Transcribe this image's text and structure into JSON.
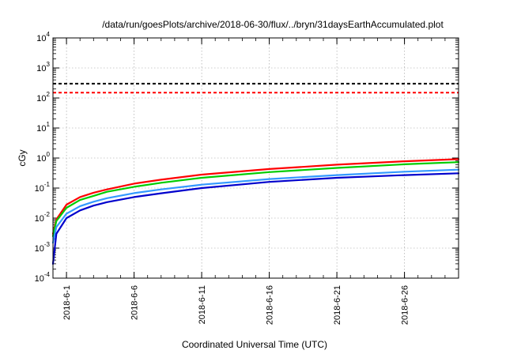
{
  "chart_data": {
    "type": "line",
    "title": "/data/run/goesPlots/archive/2018-06-30/flux/../bryn/31daysEarthAccumulated.plot",
    "xlabel": "Coordinated Universal Time (UTC)",
    "ylabel": "cGy",
    "yscale": "log",
    "ylim": [
      0.0001,
      10000
    ],
    "y_ticks": [
      {
        "base": "10",
        "exp": "-4",
        "value": 0.0001
      },
      {
        "base": "10",
        "exp": "-3",
        "value": 0.001
      },
      {
        "base": "10",
        "exp": "-2",
        "value": 0.01
      },
      {
        "base": "10",
        "exp": "-1",
        "value": 0.1
      },
      {
        "base": "10",
        "exp": "0",
        "value": 1
      },
      {
        "base": "10",
        "exp": "1",
        "value": 10
      },
      {
        "base": "10",
        "exp": "2",
        "value": 100
      },
      {
        "base": "10",
        "exp": "3",
        "value": 1000
      },
      {
        "base": "10",
        "exp": "4",
        "value": 10000
      }
    ],
    "xlim": [
      "2018-05-31",
      "2018-06-30"
    ],
    "x_ticks": [
      "2018-6-1",
      "2018-6-6",
      "2018-6-11",
      "2018-6-16",
      "2018-6-21",
      "2018-6-26"
    ],
    "grid": true,
    "reference_lines": [
      {
        "y": 300,
        "color": "#000000",
        "style": "dashed"
      },
      {
        "y": 150,
        "color": "#ff0000",
        "style": "dashed"
      }
    ],
    "series": [
      {
        "color": "#ff0000",
        "x": [
          "2018-05-31",
          "2018-05-31T06:00",
          "2018-06-01",
          "2018-06-02",
          "2018-06-03",
          "2018-06-04",
          "2018-06-06",
          "2018-06-08",
          "2018-06-11",
          "2018-06-16",
          "2018-06-21",
          "2018-06-26",
          "2018-06-30"
        ],
        "values": [
          0.003,
          0.009,
          0.028,
          0.05,
          0.07,
          0.09,
          0.14,
          0.19,
          0.28,
          0.43,
          0.6,
          0.78,
          0.92
        ]
      },
      {
        "color": "#00cc00",
        "x": [
          "2018-05-31",
          "2018-05-31T06:00",
          "2018-06-01",
          "2018-06-02",
          "2018-06-03",
          "2018-06-04",
          "2018-06-06",
          "2018-06-08",
          "2018-06-11",
          "2018-06-16",
          "2018-06-21",
          "2018-06-26",
          "2018-06-30"
        ],
        "values": [
          0.0025,
          0.008,
          0.022,
          0.04,
          0.055,
          0.075,
          0.11,
          0.15,
          0.22,
          0.34,
          0.47,
          0.62,
          0.73
        ]
      },
      {
        "color": "#3399ff",
        "x": [
          "2018-05-31",
          "2018-05-31T06:00",
          "2018-06-01",
          "2018-06-02",
          "2018-06-03",
          "2018-06-04",
          "2018-06-06",
          "2018-06-08",
          "2018-06-11",
          "2018-06-16",
          "2018-06-21",
          "2018-06-26",
          "2018-06-30"
        ],
        "values": [
          0.0015,
          0.005,
          0.014,
          0.025,
          0.035,
          0.046,
          0.068,
          0.09,
          0.13,
          0.2,
          0.27,
          0.35,
          0.41
        ]
      },
      {
        "color": "#0000cc",
        "x": [
          "2018-05-31",
          "2018-05-31T06:00",
          "2018-06-01",
          "2018-06-02",
          "2018-06-03",
          "2018-06-04",
          "2018-06-06",
          "2018-06-08",
          "2018-06-11",
          "2018-06-16",
          "2018-06-21",
          "2018-06-26",
          "2018-06-30"
        ],
        "values": [
          0.0003,
          0.003,
          0.01,
          0.018,
          0.026,
          0.034,
          0.05,
          0.067,
          0.1,
          0.16,
          0.22,
          0.27,
          0.31
        ]
      }
    ]
  }
}
